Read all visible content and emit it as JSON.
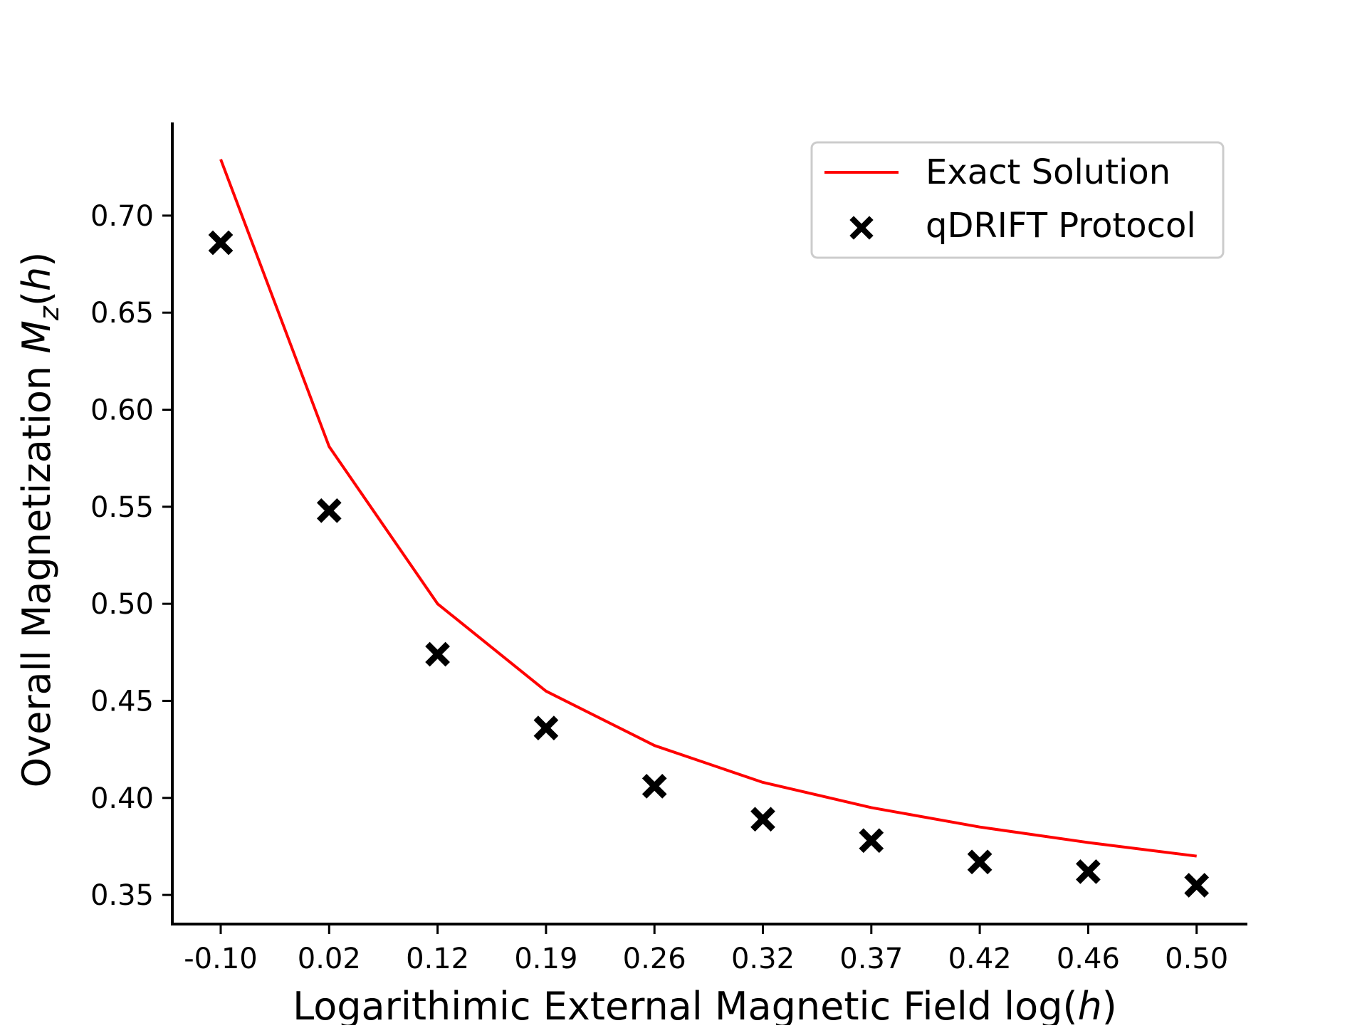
{
  "chart_data": {
    "type": "line",
    "title": "",
    "xlabel": "Logarithimic External Magnetic Field log(h)",
    "xlabel_parts": {
      "prefix": "Logarithimic External Magnetic Field log(",
      "var": "h",
      "suffix": ")"
    },
    "ylabel": "Overall Magnetization M_z(h)",
    "ylabel_parts": {
      "prefix": "Overall Magnetization ",
      "var": "M",
      "sub": "z",
      "mid": "(",
      "var2": "h",
      "suffix": ")"
    },
    "categories": [
      "-0.10",
      "0.02",
      "0.12",
      "0.19",
      "0.26",
      "0.32",
      "0.37",
      "0.42",
      "0.46",
      "0.50"
    ],
    "ylim": [
      0.335,
      0.748
    ],
    "yticks": [
      "0.35",
      "0.40",
      "0.45",
      "0.50",
      "0.55",
      "0.60",
      "0.65",
      "0.70"
    ],
    "series": [
      {
        "name": "Exact Solution",
        "kind": "line",
        "color": "#ff0000",
        "values": [
          0.729,
          0.581,
          0.5,
          0.455,
          0.427,
          0.408,
          0.395,
          0.385,
          0.377,
          0.37
        ]
      },
      {
        "name": "qDRIFT Protocol",
        "kind": "scatter",
        "marker": "x-filled",
        "color": "#000000",
        "values": [
          0.686,
          0.548,
          0.474,
          0.436,
          0.406,
          0.389,
          0.378,
          0.367,
          0.362,
          0.355
        ]
      }
    ],
    "legend_position": "top-right",
    "grid": false,
    "spines": "left-bottom"
  }
}
